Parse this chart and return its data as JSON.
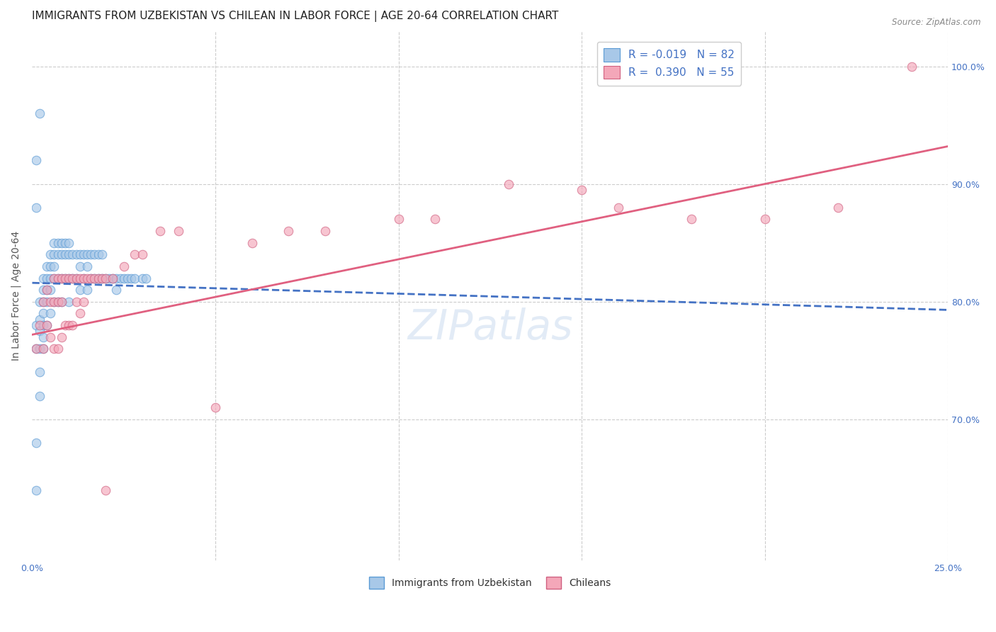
{
  "title": "IMMIGRANTS FROM UZBEKISTAN VS CHILEAN IN LABOR FORCE | AGE 20-64 CORRELATION CHART",
  "source": "Source: ZipAtlas.com",
  "ylabel": "In Labor Force | Age 20-64",
  "xlim": [
    0.0,
    0.25
  ],
  "ylim": [
    0.58,
    1.03
  ],
  "uzbekistan_color": "#a8c8e8",
  "uzbekistan_edge_color": "#5b9bd5",
  "chilean_color": "#f4a7b9",
  "chilean_edge_color": "#d06080",
  "uzbekistan_line_color": "#4472c4",
  "chilean_line_color": "#e06080",
  "legend_label_uzbekistan": "Immigrants from Uzbekistan",
  "legend_label_chilean": "Chileans",
  "R_uzbekistan": "-0.019",
  "N_uzbekistan": "82",
  "R_chilean": "0.390",
  "N_chilean": "55",
  "uzbekistan_x": [
    0.001,
    0.001,
    0.001,
    0.001,
    0.002,
    0.002,
    0.002,
    0.002,
    0.002,
    0.002,
    0.003,
    0.003,
    0.003,
    0.003,
    0.003,
    0.003,
    0.003,
    0.004,
    0.004,
    0.004,
    0.004,
    0.004,
    0.005,
    0.005,
    0.005,
    0.005,
    0.005,
    0.006,
    0.006,
    0.006,
    0.006,
    0.006,
    0.007,
    0.007,
    0.007,
    0.007,
    0.008,
    0.008,
    0.008,
    0.008,
    0.009,
    0.009,
    0.009,
    0.01,
    0.01,
    0.01,
    0.01,
    0.011,
    0.011,
    0.012,
    0.012,
    0.013,
    0.013,
    0.013,
    0.014,
    0.014,
    0.015,
    0.015,
    0.015,
    0.016,
    0.016,
    0.017,
    0.017,
    0.018,
    0.018,
    0.019,
    0.019,
    0.02,
    0.021,
    0.022,
    0.023,
    0.023,
    0.024,
    0.025,
    0.026,
    0.027,
    0.028,
    0.03,
    0.031,
    0.001,
    0.001,
    0.002
  ],
  "uzbekistan_y": [
    0.78,
    0.76,
    0.68,
    0.64,
    0.8,
    0.785,
    0.775,
    0.76,
    0.74,
    0.72,
    0.82,
    0.81,
    0.8,
    0.79,
    0.78,
    0.77,
    0.76,
    0.83,
    0.82,
    0.81,
    0.8,
    0.78,
    0.84,
    0.83,
    0.82,
    0.81,
    0.79,
    0.85,
    0.84,
    0.83,
    0.82,
    0.8,
    0.85,
    0.84,
    0.82,
    0.8,
    0.85,
    0.84,
    0.82,
    0.8,
    0.85,
    0.84,
    0.82,
    0.85,
    0.84,
    0.82,
    0.8,
    0.84,
    0.82,
    0.84,
    0.82,
    0.84,
    0.83,
    0.81,
    0.84,
    0.82,
    0.84,
    0.83,
    0.81,
    0.84,
    0.82,
    0.84,
    0.82,
    0.84,
    0.82,
    0.84,
    0.82,
    0.82,
    0.82,
    0.82,
    0.82,
    0.81,
    0.82,
    0.82,
    0.82,
    0.82,
    0.82,
    0.82,
    0.82,
    0.92,
    0.88,
    0.96
  ],
  "chilean_x": [
    0.001,
    0.002,
    0.003,
    0.003,
    0.004,
    0.004,
    0.005,
    0.005,
    0.006,
    0.006,
    0.006,
    0.007,
    0.007,
    0.007,
    0.008,
    0.008,
    0.008,
    0.009,
    0.009,
    0.01,
    0.01,
    0.011,
    0.011,
    0.012,
    0.012,
    0.013,
    0.013,
    0.014,
    0.014,
    0.015,
    0.016,
    0.017,
    0.018,
    0.019,
    0.02,
    0.022,
    0.025,
    0.028,
    0.03,
    0.035,
    0.04,
    0.05,
    0.06,
    0.07,
    0.08,
    0.1,
    0.11,
    0.13,
    0.15,
    0.16,
    0.18,
    0.2,
    0.22,
    0.24,
    0.02
  ],
  "chilean_y": [
    0.76,
    0.78,
    0.8,
    0.76,
    0.81,
    0.78,
    0.8,
    0.77,
    0.82,
    0.8,
    0.76,
    0.82,
    0.8,
    0.76,
    0.82,
    0.8,
    0.77,
    0.82,
    0.78,
    0.82,
    0.78,
    0.82,
    0.78,
    0.82,
    0.8,
    0.82,
    0.79,
    0.82,
    0.8,
    0.82,
    0.82,
    0.82,
    0.82,
    0.82,
    0.82,
    0.82,
    0.83,
    0.84,
    0.84,
    0.86,
    0.86,
    0.71,
    0.85,
    0.86,
    0.86,
    0.87,
    0.87,
    0.9,
    0.895,
    0.88,
    0.87,
    0.87,
    0.88,
    1.0,
    0.64
  ],
  "background_color": "#ffffff",
  "grid_color": "#cccccc",
  "title_fontsize": 11,
  "tick_fontsize": 9,
  "marker_size": 9,
  "marker_alpha": 0.65,
  "uzb_trend_x0": 0.0,
  "uzb_trend_y0": 0.816,
  "uzb_trend_x1": 0.25,
  "uzb_trend_y1": 0.793,
  "chl_trend_x0": 0.0,
  "chl_trend_y0": 0.772,
  "chl_trend_x1": 0.25,
  "chl_trend_y1": 0.932
}
